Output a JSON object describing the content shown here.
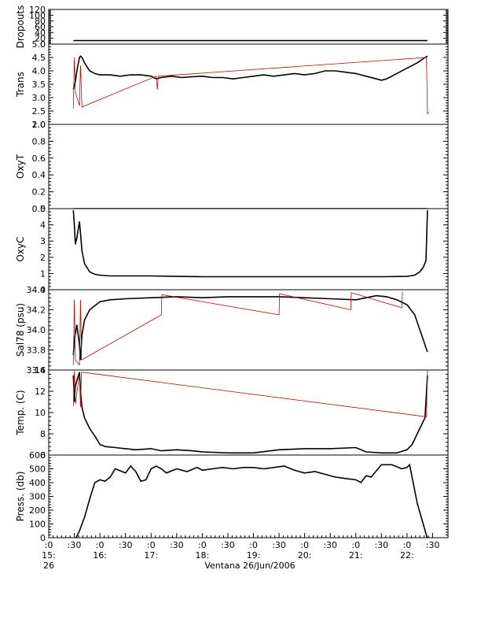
{
  "figure": {
    "xlabel": "Ventana 26/Jun/2006",
    "x_ticks": [
      {
        "label": ":0",
        "sub": [
          "15:",
          "26"
        ],
        "t": 15.0
      },
      {
        "label": ":30",
        "sub": [],
        "t": 15.5
      },
      {
        "label": ":0",
        "sub": [
          "16:"
        ],
        "t": 16.0
      },
      {
        "label": ":30",
        "sub": [],
        "t": 16.5
      },
      {
        "label": ":0",
        "sub": [
          "17:"
        ],
        "t": 17.0
      },
      {
        "label": ":30",
        "sub": [],
        "t": 17.5
      },
      {
        "label": ":0",
        "sub": [
          "18:"
        ],
        "t": 18.0
      },
      {
        "label": ":30",
        "sub": [],
        "t": 18.5
      },
      {
        "label": ":0",
        "sub": [
          "19:"
        ],
        "t": 19.0
      },
      {
        "label": ":30",
        "sub": [],
        "t": 19.5
      },
      {
        "label": ":0",
        "sub": [
          "20:"
        ],
        "t": 20.0
      },
      {
        "label": ":30",
        "sub": [],
        "t": 20.5
      },
      {
        "label": ":0",
        "sub": [
          "21:"
        ],
        "t": 21.0
      },
      {
        "label": ":30",
        "sub": [],
        "t": 21.5
      },
      {
        "label": ":0",
        "sub": [
          "22:"
        ],
        "t": 22.0
      },
      {
        "label": ":30",
        "sub": [],
        "t": 22.5
      }
    ],
    "xlim": [
      15.0,
      22.8
    ],
    "colors": {
      "primary": "#000000",
      "raw": "#cc0000"
    }
  },
  "chart_data": [
    {
      "type": "line",
      "ylabel": "Dropouts",
      "ylim": [
        0,
        120
      ],
      "yticks": [
        0,
        20,
        40,
        60,
        80,
        100,
        120
      ],
      "yticklabels": [
        "0",
        "20",
        "40",
        "60",
        "80",
        "100",
        "120"
      ],
      "series": [
        {
          "name": "",
          "x": [
            15.48,
            15.52,
            22.4
          ],
          "y": [
            12,
            12,
            12
          ],
          "color": "#000000"
        }
      ]
    },
    {
      "type": "line",
      "ylabel": "Trans",
      "ylim": [
        2.0,
        5.0
      ],
      "yticks": [
        2.0,
        2.5,
        3.0,
        3.5,
        4.0,
        4.5,
        5.0
      ],
      "yticklabels": [
        "2.0",
        "2.5",
        "3.0",
        "3.5",
        "4.0",
        "4.5",
        "5.0"
      ],
      "series": [
        {
          "name": "",
          "color": "#000000",
          "x": [
            15.48,
            15.52,
            15.55,
            15.6,
            15.62,
            15.65,
            15.7,
            15.8,
            15.9,
            16.0,
            16.2,
            16.4,
            16.6,
            16.8,
            17.0,
            17.1,
            17.2,
            17.4,
            17.6,
            17.8,
            18.0,
            18.2,
            18.4,
            18.6,
            18.8,
            19.0,
            19.2,
            19.4,
            19.6,
            19.8,
            20.0,
            20.2,
            20.4,
            20.6,
            20.8,
            21.0,
            21.2,
            21.4,
            21.5,
            21.6,
            21.8,
            22.0,
            22.2,
            22.35,
            22.4
          ],
          "y": [
            3.3,
            3.6,
            4.0,
            4.5,
            4.55,
            4.5,
            4.3,
            4.0,
            3.9,
            3.85,
            3.85,
            3.8,
            3.85,
            3.85,
            3.8,
            3.7,
            3.75,
            3.8,
            3.75,
            3.78,
            3.8,
            3.75,
            3.75,
            3.7,
            3.75,
            3.8,
            3.85,
            3.8,
            3.85,
            3.9,
            3.85,
            3.9,
            4.0,
            4.0,
            3.95,
            3.9,
            3.8,
            3.7,
            3.65,
            3.7,
            3.9,
            4.1,
            4.3,
            4.5,
            4.55
          ]
        },
        {
          "name": "",
          "color": "#cc0000",
          "x": [
            15.48,
            15.5,
            15.52,
            15.6,
            15.62,
            15.65,
            17.1,
            17.12,
            17.14,
            22.38,
            22.4,
            22.42
          ],
          "y": [
            2.6,
            4.5,
            3.2,
            2.7,
            4.2,
            2.65,
            3.8,
            3.3,
            3.8,
            4.5,
            2.4,
            2.45
          ]
        }
      ]
    },
    {
      "type": "line",
      "ylabel": "OxyT",
      "ylim": [
        0.0,
        1.0
      ],
      "yticks": [
        0.0,
        0.2,
        0.4,
        0.6,
        0.8,
        1.0
      ],
      "yticklabels": [
        "0.0",
        "0.2",
        "0.4",
        "0.6",
        "0.8",
        "1.0"
      ],
      "series": [
        {
          "name": "",
          "x": [
            15.48,
            22.4
          ],
          "y": [
            0.0,
            0.0
          ],
          "color": "#000000"
        }
      ]
    },
    {
      "type": "line",
      "ylabel": "OxyC",
      "ylim": [
        0,
        5
      ],
      "yticks": [
        0,
        1,
        2,
        3,
        4,
        5
      ],
      "yticklabels": [
        "0",
        "1",
        "2",
        "3",
        "4",
        "5"
      ],
      "series": [
        {
          "name": "",
          "color": "#000000",
          "x": [
            15.48,
            15.5,
            15.52,
            15.55,
            15.6,
            15.62,
            15.65,
            15.7,
            15.8,
            15.9,
            16.0,
            16.2,
            16.5,
            17.0,
            17.5,
            18.0,
            18.5,
            19.0,
            19.5,
            20.0,
            20.5,
            21.0,
            21.5,
            22.0,
            22.15,
            22.25,
            22.32,
            22.37,
            22.4
          ],
          "y": [
            4.9,
            4.0,
            2.8,
            3.2,
            4.2,
            3.5,
            2.4,
            1.6,
            1.1,
            0.95,
            0.9,
            0.85,
            0.85,
            0.85,
            0.82,
            0.8,
            0.8,
            0.8,
            0.8,
            0.8,
            0.8,
            0.8,
            0.8,
            0.82,
            0.9,
            1.1,
            1.4,
            1.8,
            4.9
          ]
        }
      ]
    },
    {
      "type": "line",
      "ylabel": "Sal78 (psu)",
      "ylim": [
        33.6,
        34.4
      ],
      "yticks": [
        33.6,
        33.8,
        34.0,
        34.2,
        34.4
      ],
      "yticklabels": [
        "33.6",
        "33.8",
        "34.0",
        "34.2",
        "34.4"
      ],
      "series": [
        {
          "name": "",
          "color": "#000000",
          "x": [
            15.48,
            15.5,
            15.55,
            15.6,
            15.62,
            15.65,
            15.7,
            15.8,
            15.9,
            16.0,
            16.2,
            16.5,
            17.0,
            17.5,
            18.0,
            18.5,
            19.0,
            19.5,
            20.0,
            20.5,
            21.0,
            21.2,
            21.4,
            21.6,
            21.8,
            22.0,
            22.15,
            22.25,
            22.32,
            22.37,
            22.4
          ],
          "y": [
            33.75,
            33.9,
            34.05,
            33.85,
            33.7,
            33.95,
            34.1,
            34.2,
            34.24,
            34.28,
            34.3,
            34.31,
            34.32,
            34.33,
            34.32,
            34.33,
            34.33,
            34.33,
            34.32,
            34.31,
            34.3,
            34.32,
            34.34,
            34.33,
            34.3,
            34.25,
            34.15,
            34.0,
            33.9,
            33.82,
            33.78
          ]
        },
        {
          "name": "",
          "color": "#cc0000",
          "x": [
            15.48,
            15.5,
            15.52,
            15.6,
            15.62,
            15.64,
            17.2,
            17.21,
            19.5,
            19.51,
            20.9,
            20.91,
            21.9,
            21.91
          ],
          "y": [
            33.65,
            34.3,
            33.7,
            33.65,
            34.3,
            33.7,
            34.15,
            34.35,
            34.15,
            34.36,
            34.2,
            34.37,
            34.22,
            34.38
          ]
        }
      ]
    },
    {
      "type": "line",
      "ylabel": "Temp. (C)",
      "ylim": [
        6,
        14
      ],
      "yticks": [
        6,
        8,
        10,
        12,
        14
      ],
      "yticklabels": [
        "6",
        "8",
        "10",
        "12",
        "14"
      ],
      "series": [
        {
          "name": "",
          "color": "#000000",
          "x": [
            15.48,
            15.5,
            15.52,
            15.55,
            15.6,
            15.62,
            15.65,
            15.7,
            15.75,
            15.8,
            15.9,
            16.0,
            16.1,
            16.3,
            16.5,
            16.7,
            17.0,
            17.2,
            17.5,
            17.8,
            18.0,
            18.5,
            19.0,
            19.5,
            20.0,
            20.5,
            21.0,
            21.2,
            21.5,
            21.8,
            22.0,
            22.1,
            22.2,
            22.3,
            22.35,
            22.4
          ],
          "y": [
            13.5,
            11.0,
            12.5,
            13.0,
            13.8,
            12.0,
            10.5,
            9.5,
            9.0,
            8.5,
            7.8,
            7.0,
            6.8,
            6.7,
            6.6,
            6.5,
            6.6,
            6.4,
            6.5,
            6.4,
            6.3,
            6.2,
            6.2,
            6.5,
            6.6,
            6.6,
            6.7,
            6.3,
            6.2,
            6.2,
            6.5,
            7.0,
            8.0,
            9.0,
            9.5,
            13.5
          ]
        },
        {
          "name": "",
          "color": "#cc0000",
          "x": [
            15.48,
            15.5,
            15.52,
            15.6,
            15.62,
            15.64,
            22.38,
            22.4
          ],
          "y": [
            10.6,
            13.9,
            10.8,
            13.6,
            10.5,
            13.8,
            9.6,
            14.0
          ]
        }
      ]
    },
    {
      "type": "line",
      "ylabel": "Press. (db)",
      "ylim": [
        0,
        600
      ],
      "yticks": [
        0,
        100,
        200,
        300,
        400,
        500,
        600
      ],
      "yticklabels": [
        "0",
        "100",
        "200",
        "300",
        "400",
        "500",
        "600"
      ],
      "series": [
        {
          "name": "",
          "color": "#000000",
          "x": [
            15.48,
            15.5,
            15.52,
            15.6,
            15.7,
            15.8,
            15.9,
            16.0,
            16.1,
            16.2,
            16.3,
            16.5,
            16.6,
            16.7,
            16.8,
            16.9,
            17.0,
            17.1,
            17.2,
            17.3,
            17.5,
            17.7,
            17.9,
            18.0,
            18.2,
            18.4,
            18.6,
            18.8,
            19.0,
            19.2,
            19.4,
            19.6,
            19.8,
            20.0,
            20.2,
            20.4,
            20.6,
            20.8,
            21.0,
            21.1,
            21.2,
            21.3,
            21.5,
            21.7,
            21.9,
            22.0,
            22.05,
            22.2,
            22.3,
            22.37,
            22.4
          ],
          "y": [
            -10,
            -10,
            -10,
            50,
            150,
            280,
            400,
            420,
            410,
            440,
            500,
            470,
            520,
            480,
            410,
            420,
            500,
            520,
            500,
            470,
            500,
            480,
            510,
            490,
            500,
            510,
            500,
            510,
            510,
            500,
            510,
            520,
            490,
            470,
            480,
            460,
            440,
            430,
            420,
            400,
            450,
            440,
            530,
            530,
            500,
            510,
            530,
            250,
            120,
            30,
            -10
          ]
        }
      ]
    }
  ]
}
